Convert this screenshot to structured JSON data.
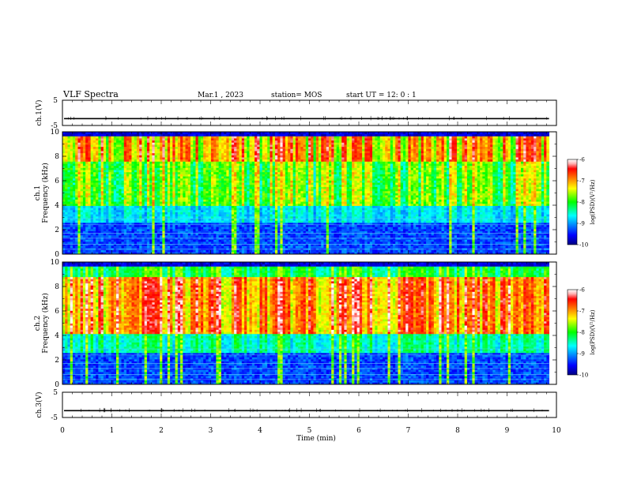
{
  "header": {
    "title": "VLF Spectra",
    "date": "Mar.1 , 2023",
    "station": "station= MOS",
    "start_time": "start UT =  12: 0  : 1"
  },
  "chart_data": [
    {
      "type": "line",
      "name": "ch1-waveform",
      "ylabel": "ch.1(V)",
      "ylim": [
        -5,
        5
      ],
      "y_ticks": [
        "5",
        "-5"
      ],
      "xlim": [
        0,
        10
      ],
      "baseline": -2.3
    },
    {
      "type": "heatmap",
      "name": "ch1-spectrogram",
      "ylabel_line1": "ch.1",
      "ylabel_line2": "Frequency (kHz)",
      "ylim": [
        0,
        10
      ],
      "y_ticks": [
        "0",
        "2",
        "4",
        "6",
        "8",
        "10"
      ],
      "xlim": [
        0,
        10
      ],
      "data_end_min": 9.85,
      "colorbar": {
        "label": "log(PSD)(V²/Hz)",
        "range": [
          -10,
          -6
        ],
        "ticks": [
          "-6",
          "-7",
          "-8",
          "-9",
          "-10"
        ]
      }
    },
    {
      "type": "heatmap",
      "name": "ch2-spectrogram",
      "ylabel_line1": "ch.2",
      "ylabel_line2": "Frequency (kHz)",
      "ylim": [
        0,
        10
      ],
      "y_ticks": [
        "0",
        "2",
        "4",
        "6",
        "8",
        "10"
      ],
      "xlim": [
        0,
        10
      ],
      "data_end_min": 9.85,
      "colorbar": {
        "label": "log(PSD)(V²/Hz)",
        "range": [
          -10,
          -6
        ],
        "ticks": [
          "-6",
          "-7",
          "-8",
          "-9",
          "-10"
        ]
      }
    },
    {
      "type": "line",
      "name": "ch3-waveform",
      "ylabel": "ch.3(V)",
      "ylim": [
        -5,
        5
      ],
      "y_ticks": [
        "5",
        "-5"
      ],
      "xlim": [
        0,
        10
      ],
      "baseline": -2.3
    }
  ],
  "x_axis": {
    "label": "Time (min)",
    "ticks": [
      "0",
      "1",
      "2",
      "3",
      "4",
      "5",
      "6",
      "7",
      "8",
      "9",
      "10"
    ]
  }
}
